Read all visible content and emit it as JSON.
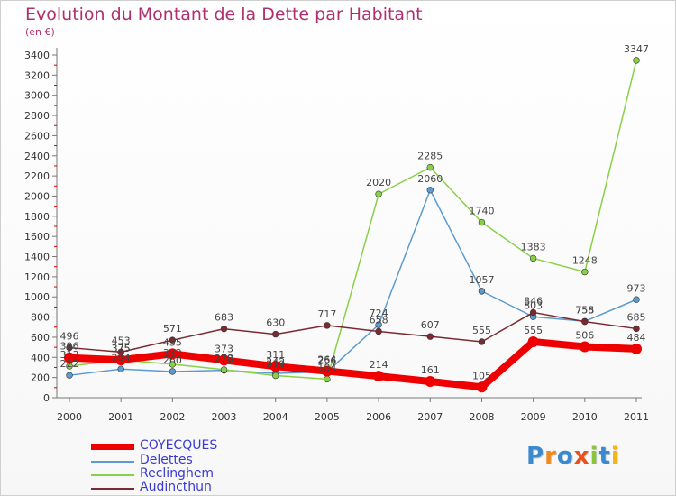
{
  "title": "Evolution du Montant de la Dette par Habitant",
  "unit_label": "(en €)",
  "logo": {
    "letters": [
      {
        "ch": "P",
        "color": "#3a8ad0"
      },
      {
        "ch": "r",
        "color": "#f08a1c"
      },
      {
        "ch": "o",
        "color": "#3a8ad0"
      },
      {
        "ch": "x",
        "color": "#e8501c"
      },
      {
        "ch": "i",
        "color": "#8cc43c"
      },
      {
        "ch": "t",
        "color": "#3a8ad0"
      },
      {
        "ch": "i",
        "color": "#f0b41c"
      }
    ]
  },
  "chart_data": {
    "type": "line",
    "title": "Evolution du Montant de la Dette par Habitant",
    "ylabel": "(en €)",
    "xlabel": "",
    "x": [
      2000,
      2001,
      2002,
      2003,
      2004,
      2005,
      2006,
      2007,
      2008,
      2009,
      2010,
      2011
    ],
    "ylim": [
      0,
      3400
    ],
    "yticks": [
      0,
      200,
      400,
      600,
      800,
      1000,
      1200,
      1400,
      1600,
      1800,
      2000,
      2200,
      2400,
      2600,
      2800,
      3000,
      3200,
      3400
    ],
    "grid": false,
    "legend_position": "bottom-left",
    "series": [
      {
        "name": "COYECQUES",
        "color": "#ee0000",
        "emphasis": true,
        "values": [
          396,
          375,
          435,
          373,
          311,
          264,
          214,
          161,
          105,
          555,
          506,
          484
        ]
      },
      {
        "name": "Delettes",
        "color": "#5b9bd0",
        "emphasis": false,
        "values": [
          222,
          284,
          260,
          272,
          242,
          256,
          724,
          2060,
          1057,
          803,
          758,
          973
        ]
      },
      {
        "name": "Reclinghem",
        "color": "#88d048",
        "emphasis": false,
        "values": [
          313,
          375,
          332,
          278,
          219,
          184,
          2020,
          2285,
          1740,
          1383,
          1248,
          3347
        ]
      },
      {
        "name": "Audincthun",
        "color": "#7a2a30",
        "emphasis": false,
        "values": [
          496,
          453,
          571,
          683,
          630,
          717,
          658,
          607,
          555,
          846,
          755,
          685
        ]
      }
    ],
    "value_labels": [
      {
        "series": 3,
        "i": 0,
        "text": "496"
      },
      {
        "series": 0,
        "i": 0,
        "text": "396"
      },
      {
        "series": 2,
        "i": 0,
        "text": "313"
      },
      {
        "series": 1,
        "i": 0,
        "text": "222"
      },
      {
        "series": 3,
        "i": 1,
        "text": "453"
      },
      {
        "series": 0,
        "i": 1,
        "text": "375"
      },
      {
        "series": 2,
        "i": 1,
        "text": "375"
      },
      {
        "series": 1,
        "i": 1,
        "text": "284"
      },
      {
        "series": 3,
        "i": 2,
        "text": "571"
      },
      {
        "series": 0,
        "i": 2,
        "text": "435"
      },
      {
        "series": 2,
        "i": 2,
        "text": "332"
      },
      {
        "series": 1,
        "i": 2,
        "text": "260"
      },
      {
        "series": 3,
        "i": 3,
        "text": "683"
      },
      {
        "series": 0,
        "i": 3,
        "text": "373"
      },
      {
        "series": 2,
        "i": 3,
        "text": "278"
      },
      {
        "series": 1,
        "i": 3,
        "text": "272"
      },
      {
        "series": 3,
        "i": 4,
        "text": "630"
      },
      {
        "series": 0,
        "i": 4,
        "text": "311"
      },
      {
        "series": 1,
        "i": 4,
        "text": "242"
      },
      {
        "series": 2,
        "i": 4,
        "text": "219"
      },
      {
        "series": 3,
        "i": 5,
        "text": "717"
      },
      {
        "series": 0,
        "i": 5,
        "text": "264"
      },
      {
        "series": 1,
        "i": 5,
        "text": "256"
      },
      {
        "series": 2,
        "i": 5,
        "text": "184"
      },
      {
        "series": 1,
        "i": 6,
        "text": "724"
      },
      {
        "series": 3,
        "i": 6,
        "text": "658"
      },
      {
        "series": 2,
        "i": 6,
        "text": "2020"
      },
      {
        "series": 0,
        "i": 6,
        "text": "214"
      },
      {
        "series": 2,
        "i": 7,
        "text": "2285"
      },
      {
        "series": 1,
        "i": 7,
        "text": "2060"
      },
      {
        "series": 3,
        "i": 7,
        "text": "607"
      },
      {
        "series": 0,
        "i": 7,
        "text": "161"
      },
      {
        "series": 2,
        "i": 8,
        "text": "1740"
      },
      {
        "series": 1,
        "i": 8,
        "text": "1057"
      },
      {
        "series": 3,
        "i": 8,
        "text": "555"
      },
      {
        "series": 0,
        "i": 8,
        "text": "105"
      },
      {
        "series": 2,
        "i": 9,
        "text": "1383"
      },
      {
        "series": 3,
        "i": 9,
        "text": "846"
      },
      {
        "series": 1,
        "i": 9,
        "text": "803"
      },
      {
        "series": 0,
        "i": 9,
        "text": "555"
      },
      {
        "series": 2,
        "i": 10,
        "text": "1248"
      },
      {
        "series": 1,
        "i": 10,
        "text": "758"
      },
      {
        "series": 3,
        "i": 10,
        "text": "755"
      },
      {
        "series": 0,
        "i": 10,
        "text": "506"
      },
      {
        "series": 2,
        "i": 11,
        "text": "3347"
      },
      {
        "series": 1,
        "i": 11,
        "text": "973"
      },
      {
        "series": 3,
        "i": 11,
        "text": "685"
      },
      {
        "series": 0,
        "i": 11,
        "text": "484"
      }
    ]
  }
}
